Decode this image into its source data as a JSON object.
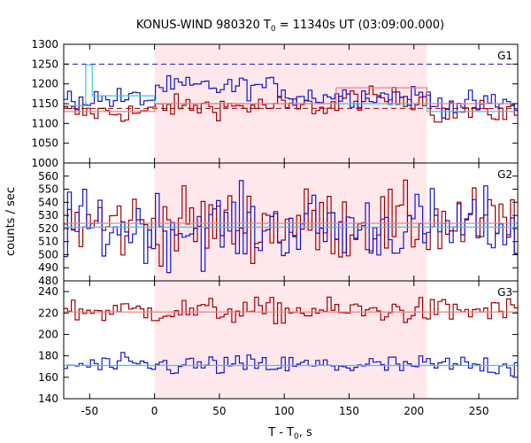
{
  "chart_data": {
    "type": "line",
    "title": {
      "prefix": "KONUS-WIND 980320 T",
      "sub": "0",
      "suffix": " = 11340s UT (03:09:00.000)"
    },
    "xlabel": {
      "prefix": "T - T",
      "sub": "0",
      "suffix": ", s"
    },
    "ylabel": "counts / sec",
    "xlim": [
      -70,
      280
    ],
    "xticks": [
      -50,
      0,
      50,
      100,
      150,
      200,
      250
    ],
    "grid": false,
    "highlight_interval": [
      0,
      210
    ],
    "colors": {
      "red_series": "#a00000",
      "blue_series": "#1515c8",
      "fit": "#3cc8e6",
      "fit_red": "#f08080",
      "highlight": "#ffe8ec"
    },
    "panels": [
      {
        "name": "G1",
        "ylim": [
          1000,
          1300
        ],
        "yticks": [
          1000,
          1050,
          1100,
          1150,
          1200,
          1250,
          1300
        ],
        "dashed_lines": [
          {
            "y": 1250,
            "color": "#1515c8"
          },
          {
            "y": 1138,
            "color": "#a00000"
          }
        ],
        "series": [
          {
            "id": "red",
            "color": "#a00000",
            "base": 1128,
            "noise": 14,
            "x_start": -70,
            "x_end": 280,
            "bin": 2.944,
            "segments": [
              {
                "x0": 0,
                "x1": 210,
                "delta": 15
              },
              {
                "x0": 140,
                "x1": 210,
                "delta": 20
              }
            ]
          },
          {
            "id": "blue",
            "color": "#1515c8",
            "base": 1162,
            "noise": 14,
            "x_start": -70,
            "x_end": 280,
            "bin": 2.944,
            "segments": [
              {
                "x0": 0,
                "x1": 100,
                "delta": 30
              },
              {
                "x0": 100,
                "x1": 210,
                "delta": 8
              },
              {
                "x0": 210,
                "x1": 280,
                "delta": -12
              }
            ]
          }
        ],
        "fits": [
          {
            "color": "#3cc8e6",
            "points": [
              [
                -70,
                1145
              ],
              [
                -53,
                1145
              ],
              [
                -53,
                1248
              ],
              [
                -48,
                1248
              ],
              [
                -48,
                1170
              ],
              [
                0,
                1170
              ],
              [
                0,
                1150
              ],
              [
                210,
                1150
              ],
              [
                210,
                1130
              ],
              [
                280,
                1130
              ]
            ]
          },
          {
            "color": "#f08080",
            "points": [
              [
                -70,
                1130
              ],
              [
                0,
                1130
              ],
              [
                0,
                1150
              ],
              [
                140,
                1150
              ],
              [
                140,
                1190
              ],
              [
                210,
                1190
              ],
              [
                210,
                1150
              ],
              [
                280,
                1150
              ]
            ]
          }
        ]
      },
      {
        "name": "G2",
        "ylim": [
          480,
          570
        ],
        "yticks": [
          480,
          490,
          500,
          510,
          520,
          530,
          540,
          550,
          560
        ],
        "dashed_lines": [],
        "series": [
          {
            "id": "red",
            "color": "#a00000",
            "base": 523,
            "noise": 14,
            "x_start": -70,
            "x_end": 280,
            "bin": 2.944,
            "segments": []
          },
          {
            "id": "blue",
            "color": "#1515c8",
            "base": 521,
            "noise": 14,
            "x_start": -70,
            "x_end": 280,
            "bin": 2.944,
            "segments": []
          }
        ],
        "fits": [
          {
            "color": "#3cc8e6",
            "points": [
              [
                -70,
                521
              ],
              [
                280,
                521
              ]
            ]
          },
          {
            "color": "#f08080",
            "points": [
              [
                -70,
                524
              ],
              [
                280,
                524
              ]
            ]
          }
        ]
      },
      {
        "name": "G3",
        "ylim": [
          140,
          250
        ],
        "yticks": [
          140,
          160,
          180,
          200,
          220,
          240
        ],
        "dashed_lines": [],
        "series": [
          {
            "id": "red",
            "color": "#a00000",
            "base": 222,
            "noise": 6,
            "x_start": -70,
            "x_end": 280,
            "bin": 2.944,
            "segments": []
          },
          {
            "id": "blue",
            "color": "#1515c8",
            "base": 171,
            "noise": 5,
            "x_start": -70,
            "x_end": 280,
            "bin": 2.944,
            "segments": []
          }
        ],
        "fits": [
          {
            "color": "#3cc8e6",
            "points": [
              [
                -70,
                171
              ],
              [
                280,
                171
              ]
            ]
          },
          {
            "color": "#f08080",
            "points": [
              [
                -70,
                221
              ],
              [
                280,
                221
              ]
            ]
          }
        ]
      }
    ]
  }
}
